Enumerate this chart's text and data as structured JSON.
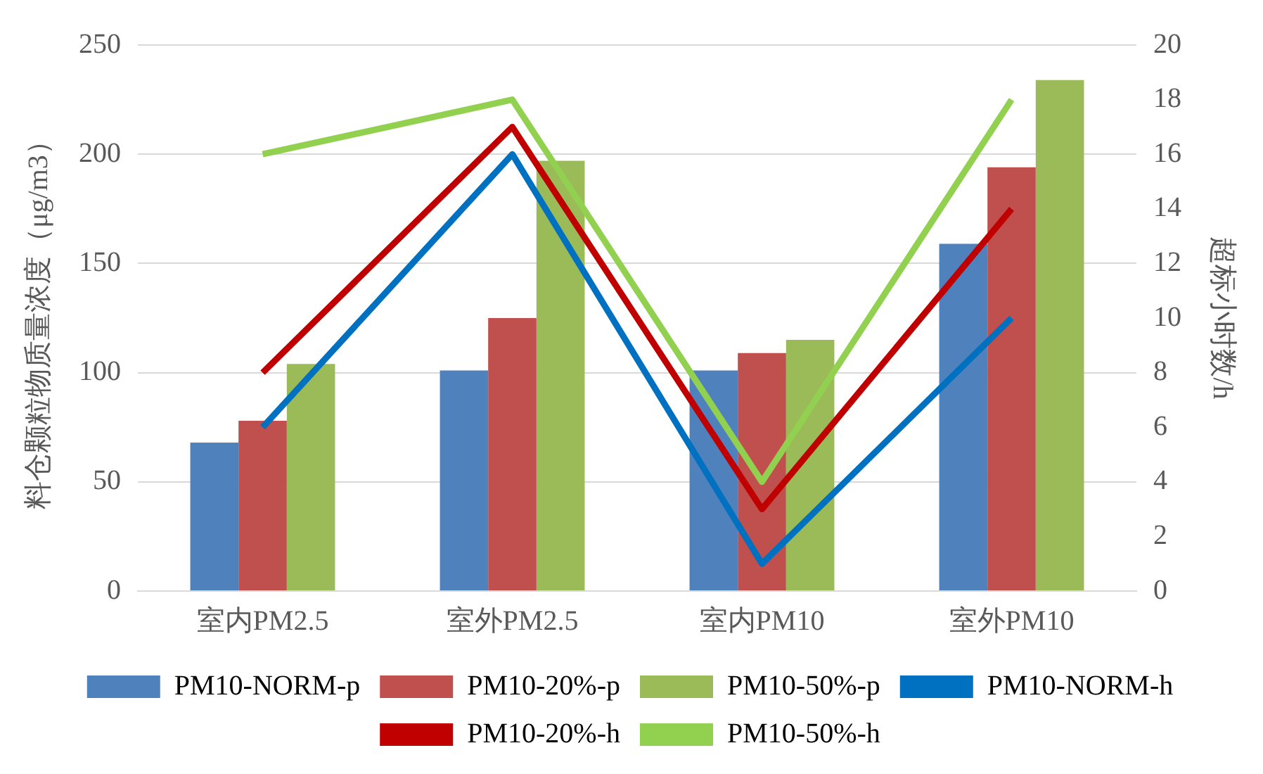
{
  "chart_data": {
    "type": "bar",
    "ylabel": "料仓颗粒物质量浓度（μg/m3）",
    "y2label": "超标小时数/h",
    "categories": [
      "室内PM2.5",
      "室外PM2.5",
      "室内PM10",
      "室外PM10"
    ],
    "series": [
      {
        "name": "PM10-NORM-p",
        "color": "#4f81bd",
        "values": [
          68,
          101,
          101,
          159
        ]
      },
      {
        "name": "PM10-20%-p",
        "color": "#c0504d",
        "values": [
          78,
          125,
          109,
          194
        ]
      },
      {
        "name": "PM10-50%-p",
        "color": "#9bbb59",
        "values": [
          104,
          197,
          115,
          234
        ]
      },
      {
        "name": "PM10-NORM-h",
        "type": "line",
        "axis": "y2",
        "color": "#0070c0",
        "values": [
          6,
          16,
          1,
          10
        ]
      },
      {
        "name": "PM10-20%-h",
        "type": "line",
        "axis": "y2",
        "color": "#c00000",
        "values": [
          8,
          17,
          3,
          14
        ]
      },
      {
        "name": "PM10-50%-h",
        "type": "line",
        "axis": "y2",
        "color": "#92d050",
        "values": [
          16,
          18,
          4,
          18
        ]
      }
    ],
    "ylim": [
      0,
      250
    ],
    "yticks": [
      0,
      50,
      100,
      150,
      200,
      250
    ],
    "y2lim": [
      0,
      20
    ],
    "y2ticks": [
      0,
      2,
      4,
      6,
      8,
      10,
      12,
      14,
      16,
      18,
      20
    ],
    "grid": "y",
    "legend": "bottom",
    "marker": "none"
  }
}
